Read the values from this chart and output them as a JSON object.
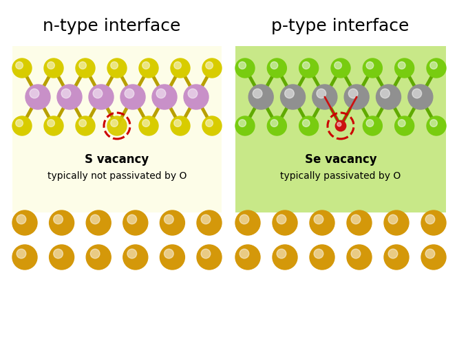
{
  "title_left": "n-type interface",
  "title_right": "p-type interface",
  "title_fontsize": 18,
  "fig_width": 6.64,
  "fig_height": 5.1,
  "bg_color": "#ffffff",
  "left_bg": "#fdfde8",
  "right_bg": "#c8e888",
  "left_label_bold": "S vacancy",
  "left_label_normal": "typically not passivated by O",
  "right_label_bold": "Se vacancy",
  "right_label_normal": "typically passivated by O",
  "color_S": "#d8cc00",
  "color_Mo": "#c890c8",
  "color_Se": "#78cc10",
  "color_W": "#909090",
  "color_Au": "#d4980a",
  "color_bond_ntype": "#b8a000",
  "color_bond_ptype": "#60aa00",
  "color_vacancy_circle": "#cc0000"
}
